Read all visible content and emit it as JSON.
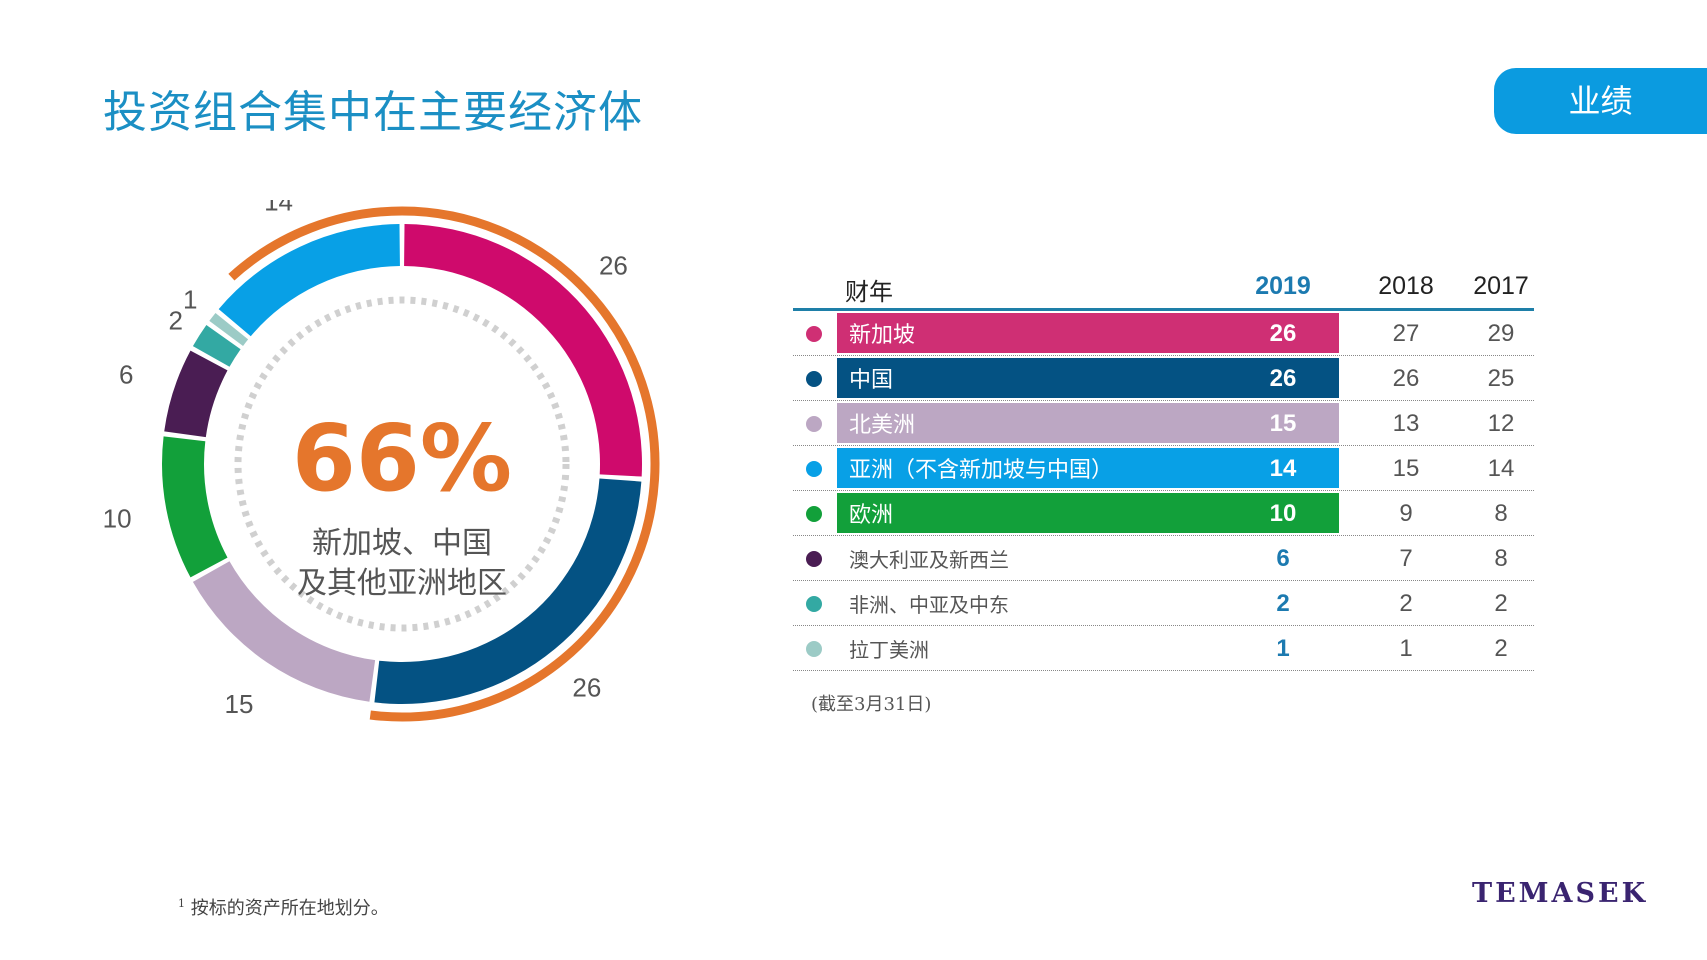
{
  "page": {
    "title": "投资组合集中在主要经济体",
    "section_tab": "业绩",
    "note": "(截至3月31日)",
    "footnote_mark": "1",
    "footnote_text": "按标的资产所在地划分。",
    "logo": "TEMASEK"
  },
  "colors": {
    "title": "#1b8fc4",
    "tab": "#0b9be0",
    "highlight": "#e5762c",
    "accent_blue": "#1c7ab0"
  },
  "table": {
    "headers": {
      "fy": "财年",
      "y2019": "2019",
      "y2018": "2018",
      "y2017": "2017"
    },
    "rows": [
      {
        "name": "新加坡",
        "color": "#cf2f74",
        "v2019": "26",
        "v2018": "27",
        "v2017": "29",
        "highlight": true
      },
      {
        "name": "中国",
        "color": "#045283",
        "v2019": "26",
        "v2018": "26",
        "v2017": "25",
        "highlight": true
      },
      {
        "name": "北美洲",
        "color": "#bca7c3",
        "v2019": "15",
        "v2018": "13",
        "v2017": "12",
        "highlight": true
      },
      {
        "name": "亚洲（不含新加坡与中国）",
        "color": "#08a0e6",
        "v2019": "14",
        "v2018": "15",
        "v2017": "14",
        "highlight": true
      },
      {
        "name": "欧洲",
        "color": "#12a03a",
        "v2019": "10",
        "v2018": "9",
        "v2017": "8",
        "highlight": true
      },
      {
        "name": "澳大利亚及新西兰",
        "color": "#4a1d53",
        "v2019": "6",
        "v2018": "7",
        "v2017": "8",
        "highlight": false
      },
      {
        "name": "非洲、中亚及中东",
        "color": "#33a9a3",
        "v2019": "2",
        "v2018": "2",
        "v2017": "2",
        "highlight": false
      },
      {
        "name": "拉丁美洲",
        "color": "#9ccbc6",
        "v2019": "1",
        "v2018": "1",
        "v2017": "2",
        "highlight": false
      }
    ]
  },
  "chart_data": {
    "type": "pie",
    "variant": "donut",
    "title": "",
    "center_value": "66%",
    "center_label_lines": [
      "新加坡、中国",
      "及其他亚洲地区"
    ],
    "highlight_arc_covers": [
      "新加坡",
      "中国",
      "亚洲（不含新加坡与中国）"
    ],
    "slices": [
      {
        "label": "新加坡",
        "value": 26,
        "color": "#cf0a6c"
      },
      {
        "label": "中国",
        "value": 26,
        "color": "#045283"
      },
      {
        "label": "北美洲",
        "value": 15,
        "color": "#bca7c3"
      },
      {
        "label": "欧洲",
        "value": 10,
        "color": "#12a03a"
      },
      {
        "label": "澳大利亚及新西兰",
        "value": 6,
        "color": "#4a1d53"
      },
      {
        "label": "非洲、中亚及中东",
        "value": 2,
        "color": "#33a9a3"
      },
      {
        "label": "拉丁美洲",
        "value": 1,
        "color": "#9ccbc6"
      },
      {
        "label": "亚洲（不含新加坡与中国）",
        "value": 14,
        "color": "#08a0e6"
      }
    ]
  }
}
